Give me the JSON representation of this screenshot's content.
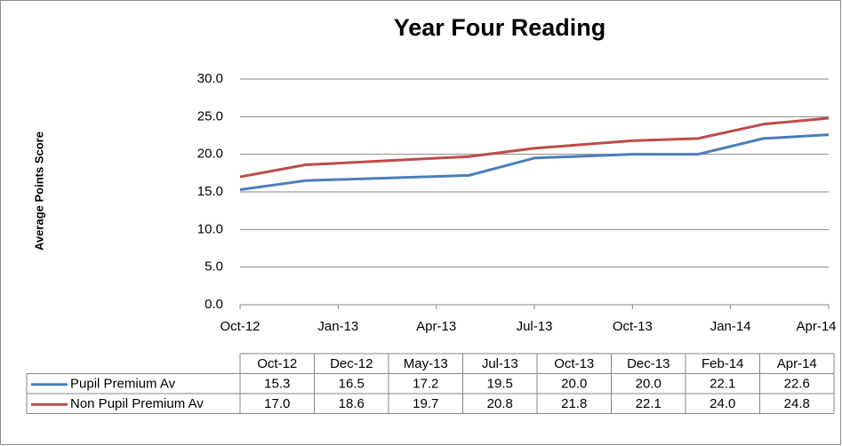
{
  "chart_data": {
    "type": "line",
    "title": "Year Four Reading",
    "y_label": "Average Points Score",
    "x": [
      "2012-10",
      "2012-12",
      "2013-05",
      "2013-07",
      "2013-10",
      "2013-12",
      "2014-02",
      "2014-04"
    ],
    "x_labels": [
      "Oct-12",
      "Dec-12",
      "May-13",
      "Jul-13",
      "Oct-13",
      "Dec-13",
      "Feb-14",
      "Apr-14"
    ],
    "xlim": [
      "2012-10",
      "2014-04"
    ],
    "xticks": [
      {
        "value": "2012-10",
        "label": "Oct-12"
      },
      {
        "value": "2013-01",
        "label": "Jan-13"
      },
      {
        "value": "2013-04",
        "label": "Apr-13"
      },
      {
        "value": "2013-07",
        "label": "Jul-13"
      },
      {
        "value": "2013-10",
        "label": "Oct-13"
      },
      {
        "value": "2014-01",
        "label": "Jan-14"
      },
      {
        "value": "2014-04",
        "label": "Apr-14"
      }
    ],
    "ylim": [
      0,
      30
    ],
    "yticks": [
      {
        "value": 0,
        "label": "0.0"
      },
      {
        "value": 5,
        "label": "5.0"
      },
      {
        "value": 10,
        "label": "10.0"
      },
      {
        "value": 15,
        "label": "15.0"
      },
      {
        "value": 20,
        "label": "20.0"
      },
      {
        "value": 25,
        "label": "25.0"
      },
      {
        "value": 30,
        "label": "30.0"
      }
    ],
    "grid": true,
    "series": [
      {
        "name": "Pupil Premium Av",
        "color": "#4a7ebb",
        "values": [
          15.3,
          16.5,
          17.2,
          19.5,
          20,
          20,
          22.1,
          22.6
        ],
        "value_labels": [
          "15.3",
          "16.5",
          "17.2",
          "19.5",
          "20.0",
          "20.0",
          "22.1",
          "22.6"
        ]
      },
      {
        "name": "Non Pupil Premium Av",
        "color": "#be4b48",
        "values": [
          17,
          18.6,
          19.7,
          20.8,
          21.8,
          22.1,
          24,
          24.8
        ],
        "value_labels": [
          "17.0",
          "18.6",
          "19.7",
          "20.8",
          "21.8",
          "22.1",
          "24.0",
          "24.8"
        ]
      }
    ]
  }
}
